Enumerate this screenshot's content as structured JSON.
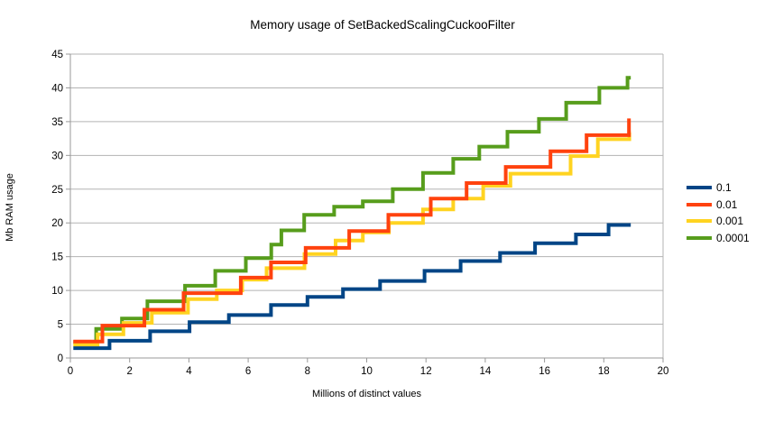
{
  "chart_data": {
    "type": "line",
    "line_style": "step",
    "title": "Memory usage of SetBackedScalingCuckooFilter",
    "xlabel": "Millions of distinct values",
    "ylabel": "Mb RAM usage",
    "xlim": [
      0,
      20
    ],
    "ylim": [
      0,
      45
    ],
    "xticks": [
      0,
      2,
      4,
      6,
      8,
      10,
      12,
      14,
      16,
      18,
      20
    ],
    "yticks": [
      0,
      5,
      10,
      15,
      20,
      25,
      30,
      35,
      40,
      45
    ],
    "grid": "horizontal-only",
    "legend_position": "right",
    "colors": {
      "grid": "#b3b3b3",
      "axis": "#999999",
      "plot_border": "#b3b3b3",
      "text": "#000000"
    },
    "series": [
      {
        "name": "0.1",
        "color": "#004586",
        "start": [
          0.1,
          1.45
        ],
        "steps": [
          [
            1.32,
            2.55
          ],
          [
            2.69,
            3.95
          ],
          [
            4.02,
            5.3
          ],
          [
            5.35,
            6.35
          ],
          [
            6.77,
            7.85
          ],
          [
            8.0,
            9.05
          ],
          [
            9.2,
            10.2
          ],
          [
            10.45,
            11.4
          ],
          [
            11.95,
            12.9
          ],
          [
            13.17,
            14.35
          ],
          [
            14.5,
            15.55
          ],
          [
            15.68,
            17.0
          ],
          [
            17.06,
            18.3
          ],
          [
            18.16,
            19.7
          ]
        ],
        "end_x": 18.91
      },
      {
        "name": "0.01",
        "color": "#ff420e",
        "start": [
          0.1,
          2.45
        ],
        "steps": [
          [
            1.08,
            4.8
          ],
          [
            2.5,
            7.15
          ],
          [
            3.82,
            9.6
          ],
          [
            5.75,
            11.9
          ],
          [
            6.77,
            14.15
          ],
          [
            7.94,
            16.3
          ],
          [
            9.41,
            18.8
          ],
          [
            10.73,
            21.2
          ],
          [
            12.16,
            23.6
          ],
          [
            13.37,
            25.9
          ],
          [
            14.69,
            28.3
          ],
          [
            16.2,
            30.6
          ],
          [
            17.42,
            33.0
          ],
          [
            18.85,
            35.2
          ]
        ],
        "end_x": 18.91
      },
      {
        "name": "0.001",
        "color": "#ffd320",
        "start": [
          0.1,
          1.95
        ],
        "steps": [
          [
            0.92,
            3.5
          ],
          [
            1.79,
            5.2
          ],
          [
            2.75,
            6.7
          ],
          [
            3.97,
            8.7
          ],
          [
            4.94,
            10.0
          ],
          [
            5.8,
            11.6
          ],
          [
            6.62,
            13.3
          ],
          [
            7.9,
            15.4
          ],
          [
            8.95,
            17.4
          ],
          [
            9.87,
            18.6
          ],
          [
            10.75,
            20.0
          ],
          [
            11.9,
            22.0
          ],
          [
            12.92,
            23.6
          ],
          [
            13.93,
            25.5
          ],
          [
            14.85,
            27.3
          ],
          [
            16.88,
            29.9
          ],
          [
            17.8,
            32.4
          ],
          [
            18.86,
            33.4
          ]
        ],
        "end_x": 18.91
      },
      {
        "name": "0.0001",
        "color": "#579d1c",
        "start": [
          0.1,
          2.35
        ],
        "steps": [
          [
            0.87,
            4.3
          ],
          [
            1.74,
            5.85
          ],
          [
            2.6,
            8.4
          ],
          [
            3.87,
            10.7
          ],
          [
            4.89,
            12.9
          ],
          [
            5.92,
            14.8
          ],
          [
            6.78,
            16.8
          ],
          [
            7.12,
            18.9
          ],
          [
            7.89,
            21.2
          ],
          [
            8.9,
            22.4
          ],
          [
            9.87,
            23.2
          ],
          [
            10.88,
            25.0
          ],
          [
            11.9,
            27.4
          ],
          [
            12.92,
            29.5
          ],
          [
            13.8,
            31.3
          ],
          [
            14.75,
            33.5
          ],
          [
            15.81,
            35.4
          ],
          [
            16.73,
            37.8
          ],
          [
            17.85,
            40.0
          ],
          [
            18.8,
            41.5
          ]
        ],
        "end_x": 18.91
      }
    ],
    "legend": {
      "entries": [
        {
          "label": "0.1"
        },
        {
          "label": "0.01"
        },
        {
          "label": "0.001"
        },
        {
          "label": "0.0001"
        }
      ]
    }
  }
}
